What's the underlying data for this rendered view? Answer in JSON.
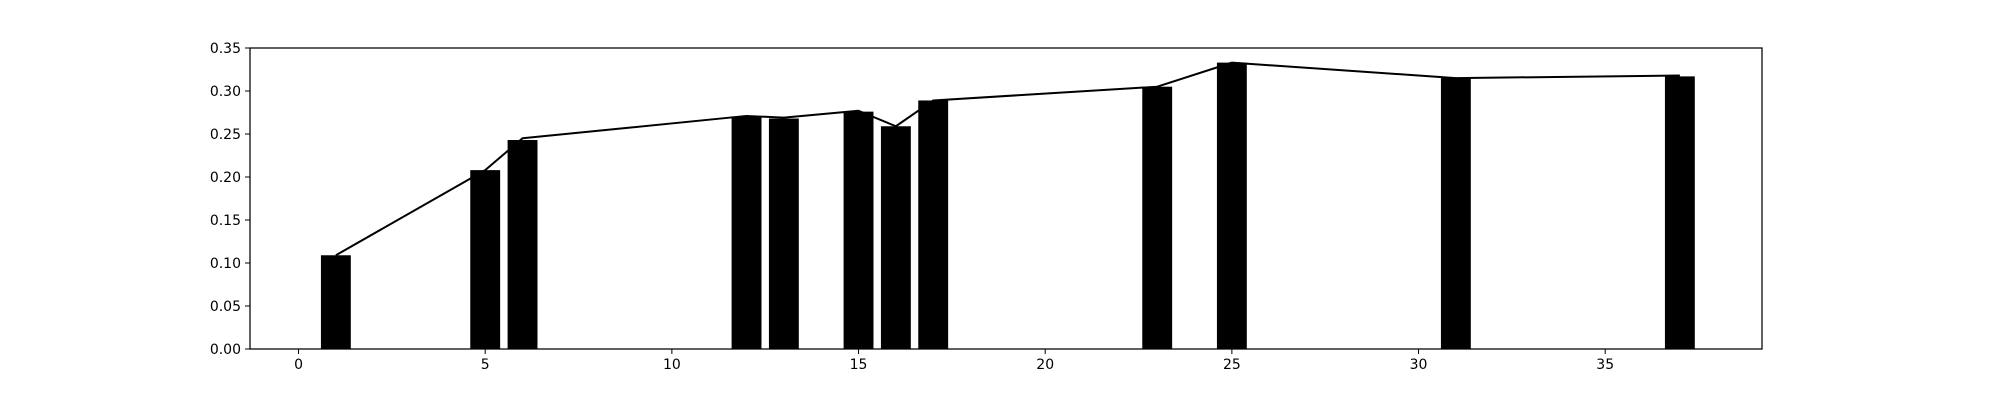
{
  "chart_data": {
    "type": "bar",
    "title": "",
    "xlabel": "",
    "ylabel": "",
    "xlim": [
      -1.3,
      39.2
    ],
    "ylim": [
      0,
      0.35
    ],
    "xticks": [
      0,
      5,
      10,
      15,
      20,
      25,
      30,
      35
    ],
    "yticks": [
      0.0,
      0.05,
      0.1,
      0.15,
      0.2,
      0.25,
      0.3,
      0.35
    ],
    "ytick_labels": [
      "0.00",
      "0.05",
      "0.10",
      "0.15",
      "0.20",
      "0.25",
      "0.30",
      "0.35"
    ],
    "xtick_labels": [
      "0",
      "5",
      "10",
      "15",
      "20",
      "25",
      "30",
      "35"
    ],
    "grid": false,
    "legend": "none",
    "bar_color": "#000000",
    "line_color": "#000000",
    "bars": {
      "x": [
        1,
        5,
        6,
        12,
        13,
        15,
        16,
        17,
        23,
        25,
        31,
        37
      ],
      "values": [
        0.109,
        0.208,
        0.243,
        0.27,
        0.268,
        0.276,
        0.259,
        0.289,
        0.305,
        0.333,
        0.315,
        0.317
      ]
    },
    "line": {
      "x": [
        1,
        5,
        6,
        12,
        13,
        15,
        16,
        17,
        23,
        25,
        31,
        37
      ],
      "values": [
        0.109,
        0.208,
        0.245,
        0.271,
        0.269,
        0.277,
        0.259,
        0.289,
        0.305,
        0.333,
        0.315,
        0.318
      ]
    }
  }
}
